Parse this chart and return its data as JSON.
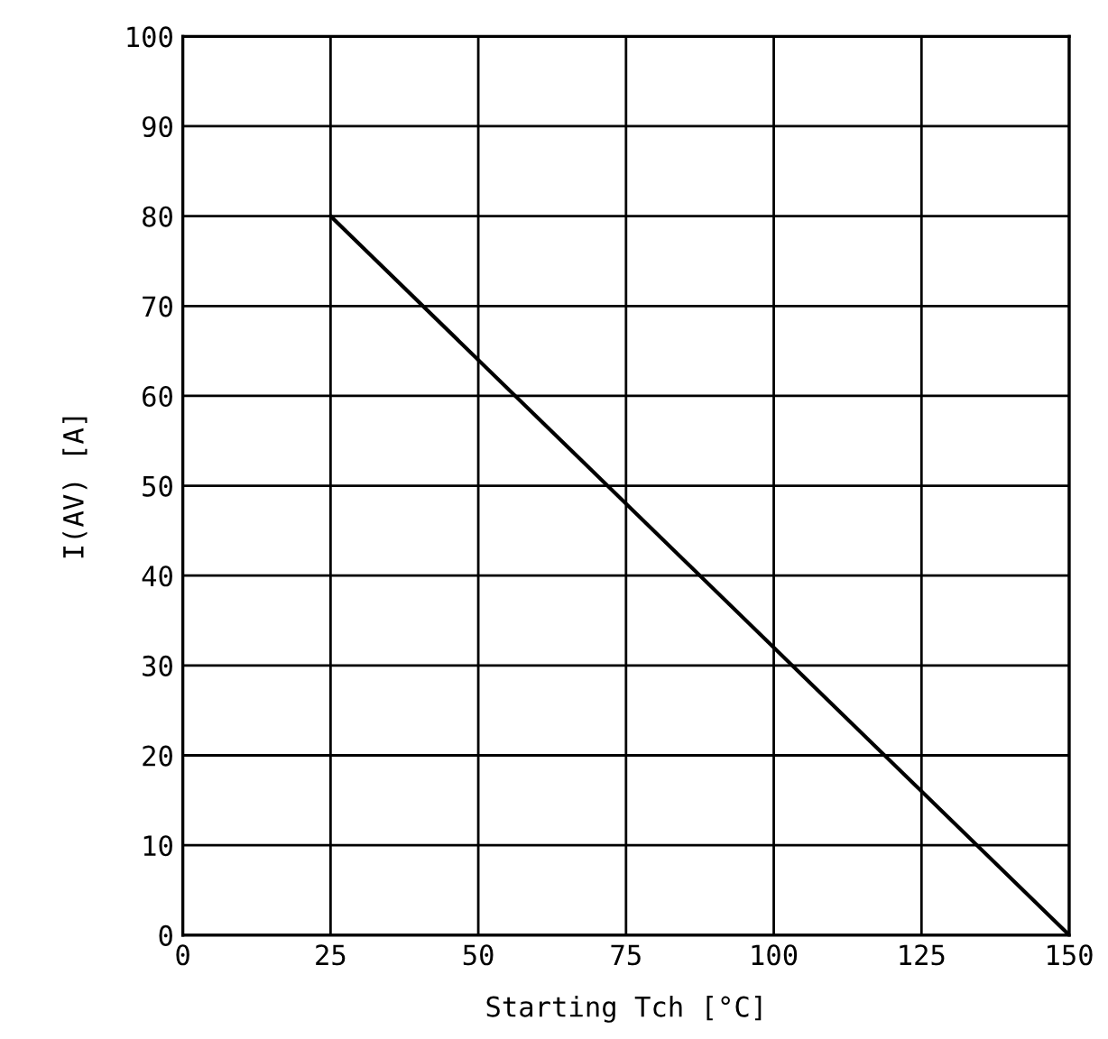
{
  "chart_data": {
    "type": "line",
    "xlabel": "Starting Tch [°C]",
    "ylabel": "I(AV) [A]",
    "x": [
      25,
      150
    ],
    "series": [
      {
        "color": "#000000",
        "values": [
          80,
          0
        ]
      }
    ],
    "xlim": [
      0,
      150
    ],
    "xticks": [
      0,
      25,
      50,
      75,
      100,
      125,
      150
    ],
    "ylim": [
      0,
      100
    ],
    "yticks": [
      0,
      10,
      20,
      30,
      40,
      50,
      60,
      70,
      80,
      90,
      100
    ],
    "grid": true,
    "line_style": "solid"
  }
}
